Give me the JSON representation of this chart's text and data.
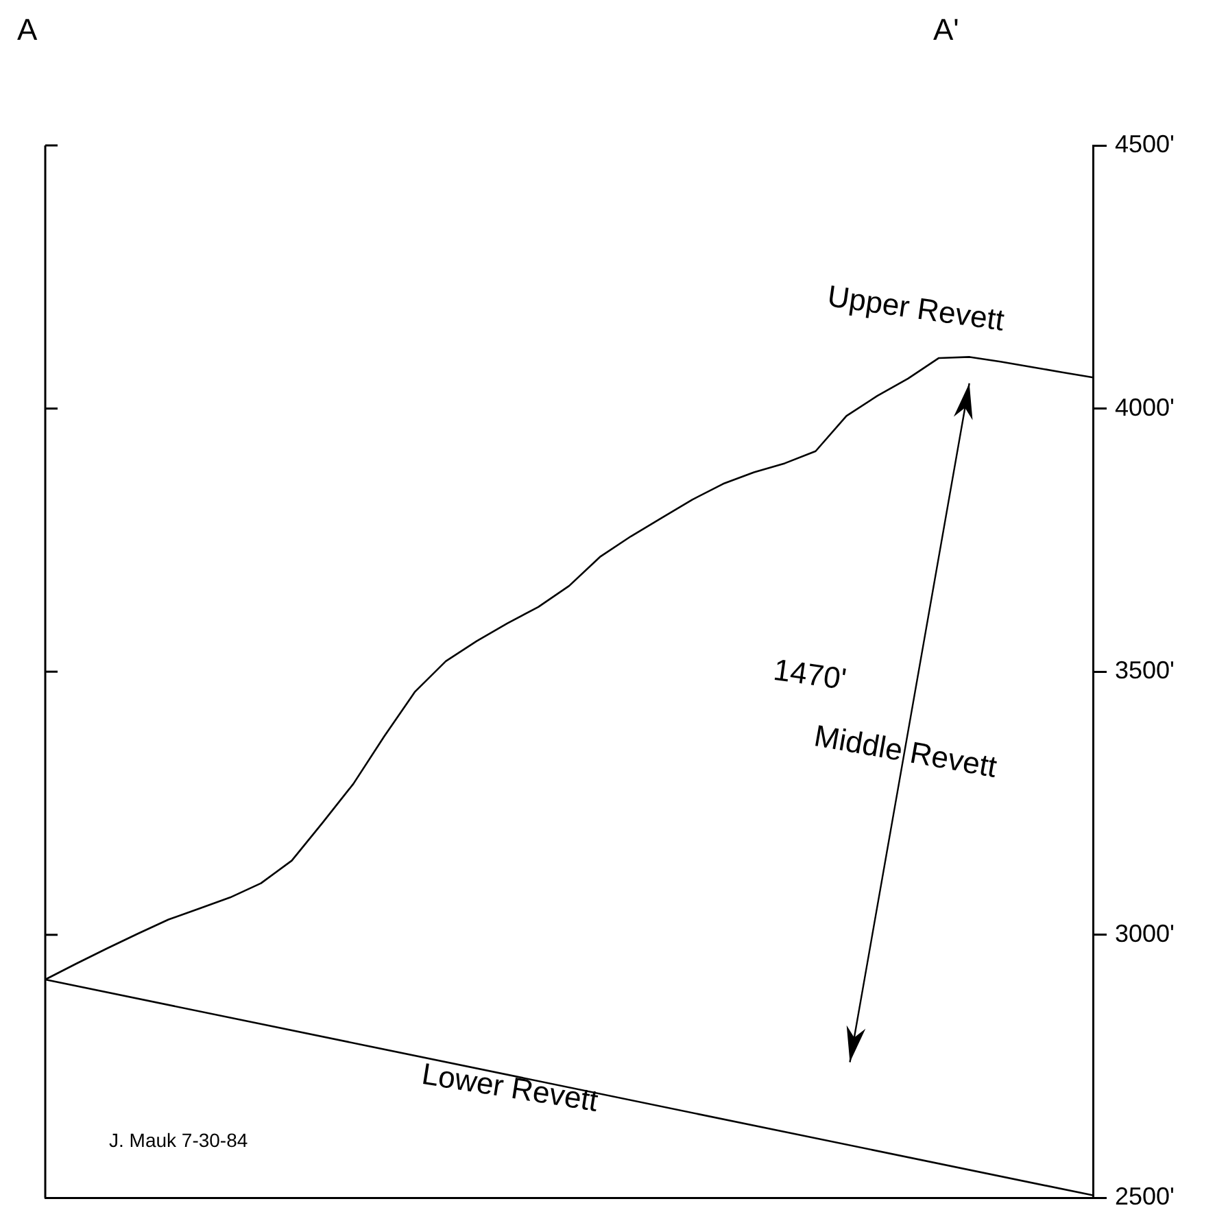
{
  "chart_data": {
    "type": "line",
    "categories": [
      null,
      null,
      null,
      null,
      null,
      null,
      null,
      null,
      null,
      null,
      null,
      null,
      null,
      null,
      null,
      null,
      null,
      null,
      null,
      null,
      null,
      null,
      null,
      null,
      null,
      null,
      null,
      null,
      null,
      null,
      null,
      null,
      null,
      null,
      null
    ],
    "series": [
      {
        "color": "#000000",
        "values": [
          2915,
          2945,
          2974,
          3002,
          3029,
          3050,
          3071,
          3098,
          3141,
          3213,
          3287,
          3377,
          3462,
          3520,
          3558,
          3592,
          3623,
          3663,
          3718,
          3757,
          3792,
          3827,
          3857,
          3879,
          3896,
          3919,
          3986,
          4024,
          4057,
          4096,
          4098,
          4089,
          4079,
          4069,
          4059
        ]
      },
      {
        "color": "#000000",
        "values": [
          2915,
          null,
          null,
          null,
          null,
          null,
          null,
          null,
          null,
          null,
          null,
          null,
          null,
          null,
          null,
          null,
          null,
          null,
          null,
          null,
          null,
          null,
          null,
          null,
          null,
          null,
          null,
          null,
          null,
          null,
          null,
          null,
          null,
          null,
          2505
        ]
      }
    ],
    "ylim": [
      2500,
      4500
    ],
    "yticks": [
      {
        "value": 2500,
        "label": "2500'"
      },
      {
        "value": 3000,
        "label": "3000'"
      },
      {
        "value": 3500,
        "label": "3500'"
      },
      {
        "value": 4000,
        "label": "4000'"
      },
      {
        "value": 4500,
        "label": "4500'"
      }
    ],
    "tick_labels": "y",
    "grid": false,
    "legend": false,
    "marker": "none",
    "line_style": "solid",
    "annotations": [
      "A",
      "A'",
      "Upper Revett",
      "1470'",
      "Middle Revett",
      "Lower Revett",
      "J. Mauk  7-30-84"
    ]
  }
}
